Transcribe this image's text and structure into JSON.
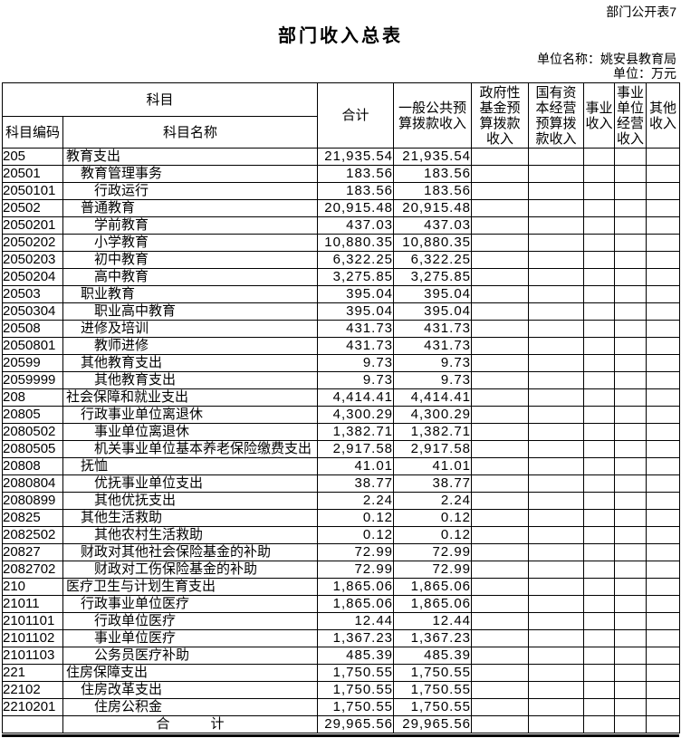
{
  "meta": {
    "form_reference": "部门公开表7",
    "title": "部门收入总表",
    "unit_name": "单位名称：姚安县教育局",
    "unit_of_measure": "单位：万元"
  },
  "colors": {
    "text": "#000000",
    "background": "#ffffff",
    "border": "#000000"
  },
  "table": {
    "header": {
      "subject_group": "科目",
      "subject_code": "科目编码",
      "subject_name": "科目名称",
      "total": "合计",
      "general_budget": "一般公共预\n算拨款收入",
      "gov_fund": "政府性\n基金预\n算拨款\n收入",
      "state_capital": "国有资\n本经营\n预算拨\n款收入",
      "business_income": "事业\n收入",
      "business_operating": "事业\n单位\n经营\n收入",
      "other_income": "其他\n收入"
    },
    "rows": [
      {
        "code": "205",
        "name": "教育支出",
        "indent": 0,
        "total": "21,935.54",
        "general": "21,935.54"
      },
      {
        "code": "20501",
        "name": "教育管理事务",
        "indent": 1,
        "total": "183.56",
        "general": "183.56"
      },
      {
        "code": "2050101",
        "name": "行政运行",
        "indent": 2,
        "total": "183.56",
        "general": "183.56"
      },
      {
        "code": "20502",
        "name": "普通教育",
        "indent": 1,
        "total": "20,915.48",
        "general": "20,915.48"
      },
      {
        "code": "2050201",
        "name": "学前教育",
        "indent": 2,
        "total": "437.03",
        "general": "437.03"
      },
      {
        "code": "2050202",
        "name": "小学教育",
        "indent": 2,
        "total": "10,880.35",
        "general": "10,880.35"
      },
      {
        "code": "2050203",
        "name": "初中教育",
        "indent": 2,
        "total": "6,322.25",
        "general": "6,322.25"
      },
      {
        "code": "2050204",
        "name": "高中教育",
        "indent": 2,
        "total": "3,275.85",
        "general": "3,275.85"
      },
      {
        "code": "20503",
        "name": "职业教育",
        "indent": 1,
        "total": "395.04",
        "general": "395.04"
      },
      {
        "code": "2050304",
        "name": "职业高中教育",
        "indent": 2,
        "total": "395.04",
        "general": "395.04"
      },
      {
        "code": "20508",
        "name": "进修及培训",
        "indent": 1,
        "total": "431.73",
        "general": "431.73"
      },
      {
        "code": "2050801",
        "name": "教师进修",
        "indent": 2,
        "total": "431.73",
        "general": "431.73"
      },
      {
        "code": "20599",
        "name": "其他教育支出",
        "indent": 1,
        "total": "9.73",
        "general": "9.73"
      },
      {
        "code": "2059999",
        "name": "其他教育支出",
        "indent": 2,
        "total": "9.73",
        "general": "9.73"
      },
      {
        "code": "208",
        "name": "社会保障和就业支出",
        "indent": 0,
        "total": "4,414.41",
        "general": "4,414.41"
      },
      {
        "code": "20805",
        "name": "行政事业单位离退休",
        "indent": 1,
        "total": "4,300.29",
        "general": "4,300.29"
      },
      {
        "code": "2080502",
        "name": "事业单位离退休",
        "indent": 2,
        "total": "1,382.71",
        "general": "1,382.71"
      },
      {
        "code": "2080505",
        "name": "机关事业单位基本养老保险缴费支出",
        "indent": 2,
        "total": "2,917.58",
        "general": "2,917.58"
      },
      {
        "code": "20808",
        "name": "抚恤",
        "indent": 1,
        "total": "41.01",
        "general": "41.01"
      },
      {
        "code": "2080804",
        "name": "优抚事业单位支出",
        "indent": 2,
        "total": "38.77",
        "general": "38.77"
      },
      {
        "code": "2080899",
        "name": "其他优抚支出",
        "indent": 2,
        "total": "2.24",
        "general": "2.24"
      },
      {
        "code": "20825",
        "name": "其他生活救助",
        "indent": 1,
        "total": "0.12",
        "general": "0.12"
      },
      {
        "code": "2082502",
        "name": "其他农村生活救助",
        "indent": 2,
        "total": "0.12",
        "general": "0.12"
      },
      {
        "code": "20827",
        "name": "财政对其他社会保险基金的补助",
        "indent": 1,
        "total": "72.99",
        "general": "72.99"
      },
      {
        "code": "2082702",
        "name": "财政对工伤保险基金的补助",
        "indent": 2,
        "total": "72.99",
        "general": "72.99"
      },
      {
        "code": "210",
        "name": "医疗卫生与计划生育支出",
        "indent": 0,
        "total": "1,865.06",
        "general": "1,865.06"
      },
      {
        "code": "21011",
        "name": "行政事业单位医疗",
        "indent": 1,
        "total": "1,865.06",
        "general": "1,865.06"
      },
      {
        "code": "2101101",
        "name": "行政单位医疗",
        "indent": 2,
        "total": "12.44",
        "general": "12.44"
      },
      {
        "code": "2101102",
        "name": "事业单位医疗",
        "indent": 2,
        "total": "1,367.23",
        "general": "1,367.23"
      },
      {
        "code": "2101103",
        "name": "公务员医疗补助",
        "indent": 2,
        "total": "485.39",
        "general": "485.39"
      },
      {
        "code": "221",
        "name": "住房保障支出",
        "indent": 0,
        "total": "1,750.55",
        "general": "1,750.55"
      },
      {
        "code": "22102",
        "name": "住房改革支出",
        "indent": 1,
        "total": "1,750.55",
        "general": "1,750.55"
      },
      {
        "code": "2210201",
        "name": "住房公积金",
        "indent": 2,
        "total": "1,750.55",
        "general": "1,750.55"
      }
    ],
    "total_row": {
      "label": "合　　　计",
      "total": "29,965.56",
      "general": "29,965.56"
    }
  }
}
